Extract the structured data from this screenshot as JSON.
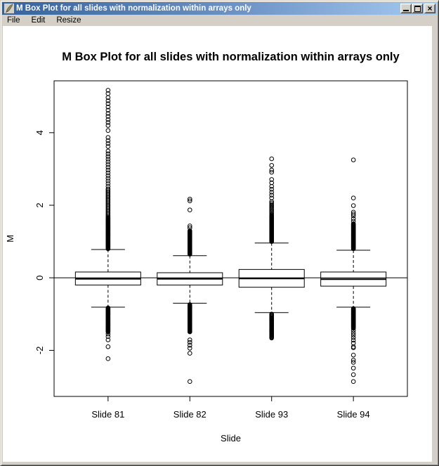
{
  "window": {
    "title": "M Box Plot for all slides with normalization within arrays only",
    "icon": "feather-icon",
    "controls": {
      "minimize": "minimize",
      "maximize": "maximize",
      "close_glyph": "×"
    },
    "titlebar_gradient": [
      "#36629e",
      "#a6caf0"
    ]
  },
  "menu": {
    "items": [
      {
        "label": "File"
      },
      {
        "label": "Edit"
      },
      {
        "label": "Resize"
      }
    ]
  },
  "chart_data": {
    "type": "boxplot",
    "title": "M Box Plot for all slides with normalization within arrays only",
    "xlabel": "Slide",
    "ylabel": "M",
    "categories": [
      "Slide 81",
      "Slide 82",
      "Slide 93",
      "Slide 94"
    ],
    "ylim": [
      -3.27,
      5.43
    ],
    "yticks": [
      -2,
      0,
      2,
      4
    ],
    "reference_line": 0,
    "grid": false,
    "frame_color": "#000000",
    "background": "#ffffff",
    "boxes": [
      {
        "label": "Slide 81",
        "q1": -0.2,
        "median": -0.03,
        "q3": 0.16,
        "whisker_low": -0.81,
        "whisker_high": 0.78,
        "outlier_runs_high": [
          {
            "from": 0.8,
            "to": 1.66,
            "step": 0.015
          },
          {
            "from": 1.68,
            "to": 2.48,
            "step": 0.035
          },
          {
            "from": 2.52,
            "to": 3.5,
            "step": 0.075
          }
        ],
        "outliers_high": [
          3.62,
          3.7,
          3.78,
          3.87,
          4.06,
          4.2,
          4.28,
          4.36,
          4.45,
          4.53,
          4.62,
          4.71,
          4.8,
          4.88,
          4.97,
          5.08,
          5.17
        ],
        "outlier_runs_low": [
          {
            "from": -1.49,
            "to": -0.82,
            "step": 0.015
          }
        ],
        "outliers_low": [
          -1.55,
          -1.62,
          -1.71,
          -1.9,
          -2.23
        ]
      },
      {
        "label": "Slide 82",
        "q1": -0.2,
        "median": -0.03,
        "q3": 0.14,
        "whisker_low": -0.7,
        "whisker_high": 0.61,
        "outlier_runs_high": [
          {
            "from": 0.65,
            "to": 1.3,
            "step": 0.015
          }
        ],
        "outliers_high": [
          1.38,
          1.43,
          1.87,
          2.12,
          2.17
        ],
        "outlier_runs_low": [
          {
            "from": -1.49,
            "to": -0.74,
            "step": 0.015
          }
        ],
        "outliers_low": [
          -1.71,
          -1.78,
          -1.86,
          -1.94,
          -2.08,
          -2.86
        ]
      },
      {
        "label": "Slide 93",
        "q1": -0.26,
        "median": -0.02,
        "q3": 0.23,
        "whisker_low": -0.96,
        "whisker_high": 0.96,
        "outlier_runs_high": [
          {
            "from": 1.0,
            "to": 1.72,
            "step": 0.015
          },
          {
            "from": 1.74,
            "to": 2.1,
            "step": 0.04
          }
        ],
        "outliers_high": [
          2.2,
          2.28,
          2.36,
          2.44,
          2.52,
          2.62,
          2.71,
          2.91,
          2.97,
          3.1,
          3.28
        ],
        "outlier_runs_low": [
          {
            "from": -1.66,
            "to": -1.0,
            "step": 0.02
          }
        ],
        "outliers_low": []
      },
      {
        "label": "Slide 94",
        "q1": -0.23,
        "median": -0.04,
        "q3": 0.16,
        "whisker_low": -0.81,
        "whisker_high": 0.76,
        "outlier_runs_high": [
          {
            "from": 0.8,
            "to": 1.49,
            "step": 0.015
          }
        ],
        "outliers_high": [
          1.56,
          1.63,
          1.71,
          1.76,
          1.81,
          1.99,
          2.2,
          3.25
        ],
        "outlier_runs_low": [
          {
            "from": -1.39,
            "to": -0.85,
            "step": 0.015
          }
        ],
        "outliers_low": [
          -1.45,
          -1.52,
          -1.58,
          -1.65,
          -1.72,
          -1.8,
          -1.9,
          -1.93,
          -2.13,
          -2.27,
          -2.33,
          -2.49,
          -2.67,
          -2.86
        ]
      }
    ]
  }
}
